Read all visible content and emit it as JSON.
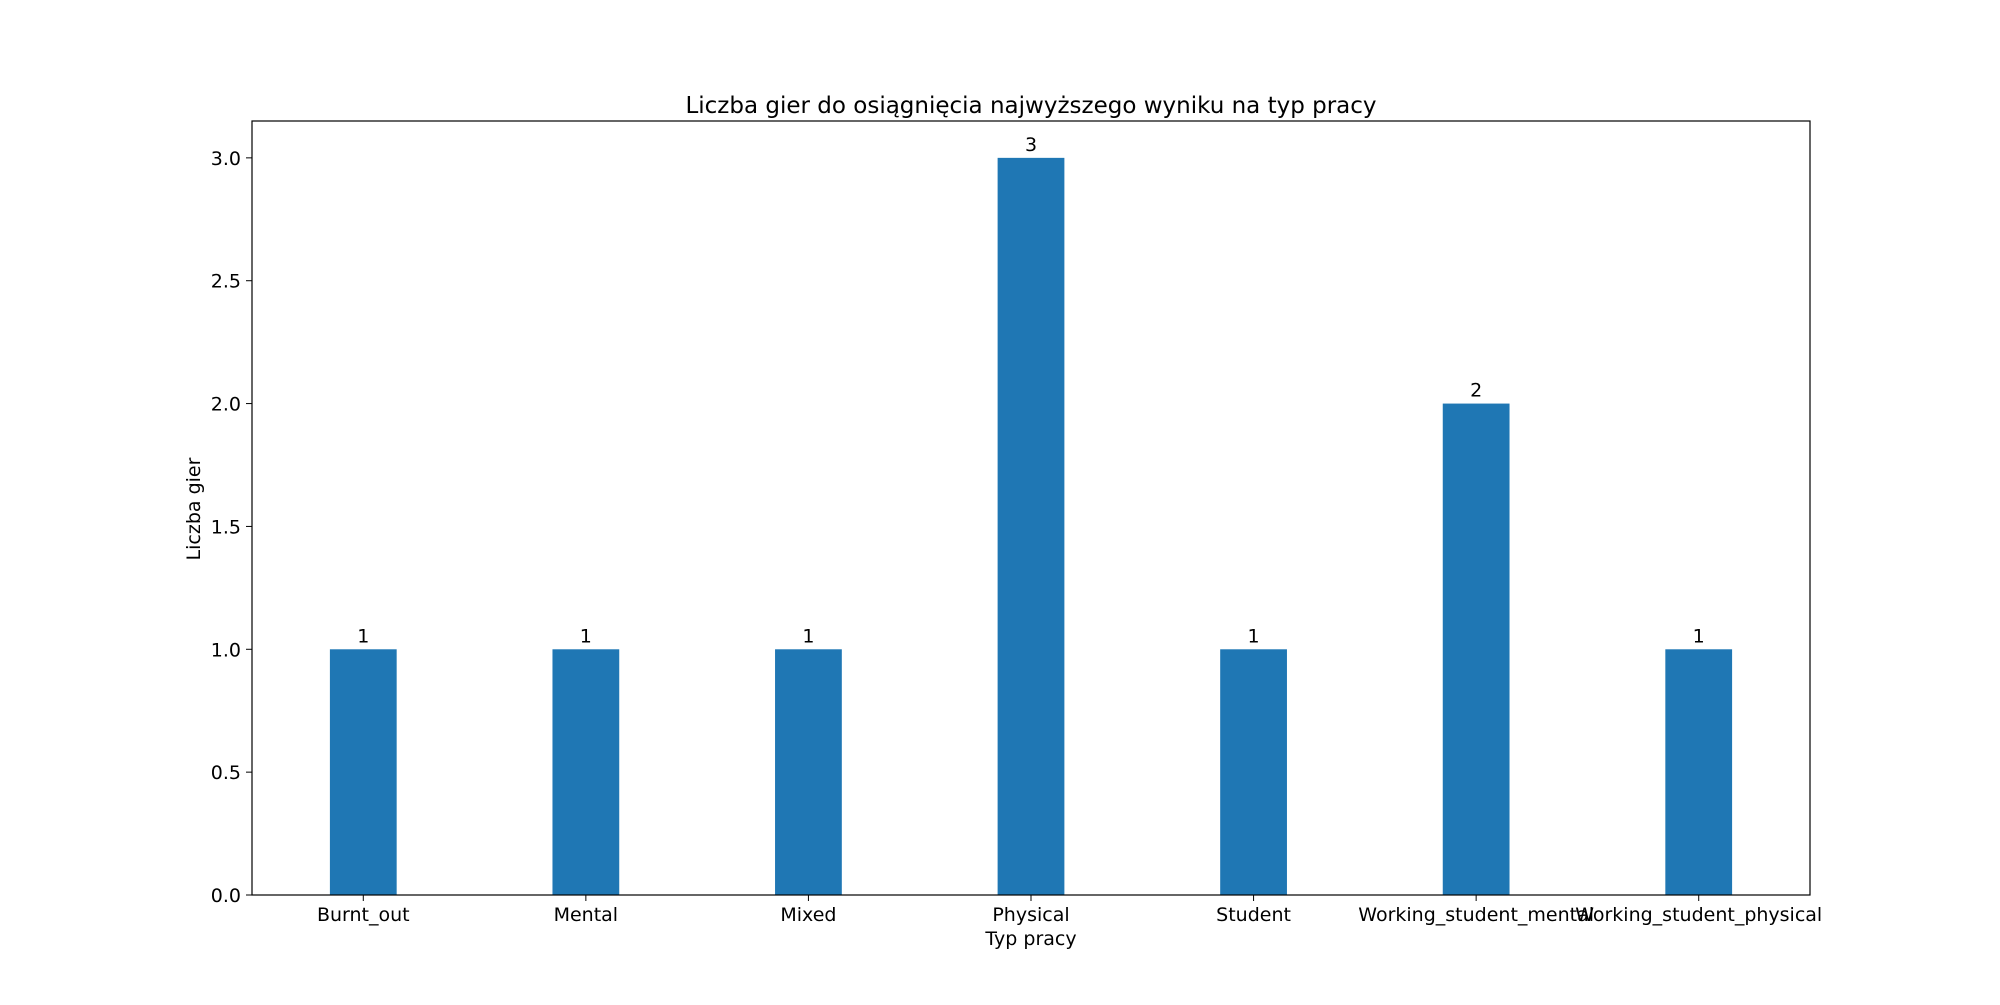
{
  "chart_data": {
    "type": "bar",
    "title": "Liczba gier do osiągnięcia najwyższego wyniku na typ pracy",
    "xlabel": "Typ pracy",
    "ylabel": "Liczba gier",
    "categories": [
      "Burnt_out",
      "Mental",
      "Mixed",
      "Physical",
      "Student",
      "Working_student_mental",
      "Working_student_physical"
    ],
    "values": [
      1,
      1,
      1,
      3,
      1,
      2,
      1
    ],
    "data_labels": [
      "1",
      "1",
      "1",
      "3",
      "1",
      "2",
      "1"
    ],
    "ylim": [
      0,
      3.15
    ],
    "yticks": [
      0.0,
      0.5,
      1.0,
      1.5,
      2.0,
      2.5,
      3.0
    ],
    "ytick_labels": [
      "0.0",
      "0.5",
      "1.0",
      "1.5",
      "2.0",
      "2.5",
      "3.0"
    ],
    "bar_color": "#1f77b4",
    "grid": false,
    "legend": "none"
  }
}
